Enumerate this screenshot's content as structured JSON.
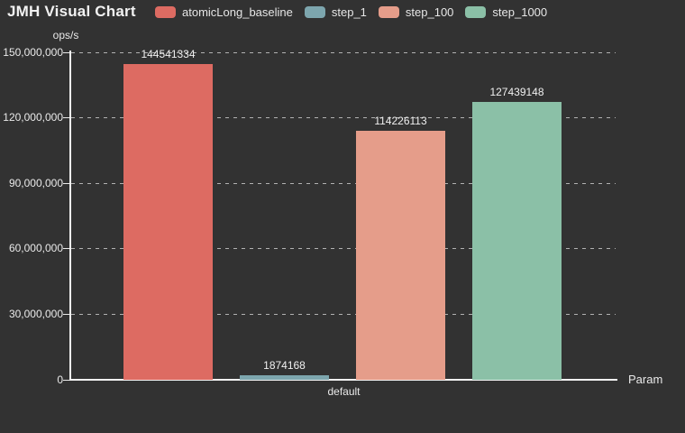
{
  "chart_data": {
    "type": "bar",
    "title": "JMH Visual Chart",
    "categories": [
      "default"
    ],
    "series": [
      {
        "name": "atomicLong_baseline",
        "values": [
          144541334
        ],
        "value_labels": [
          "144541334"
        ],
        "color": "#dd6b62"
      },
      {
        "name": "step_1",
        "values": [
          1874168
        ],
        "value_labels": [
          "1874168"
        ],
        "color": "#7da6ae"
      },
      {
        "name": "step_100",
        "values": [
          114226113
        ],
        "value_labels": [
          "114226113"
        ],
        "color": "#e59d8a"
      },
      {
        "name": "step_1000",
        "values": [
          127439148
        ],
        "value_labels": [
          "127439148"
        ],
        "color": "#8bc0a7"
      }
    ],
    "xlabel": "Param",
    "ylabel": "ops/s",
    "ylim": [
      0,
      150000000
    ],
    "ytick_step": 30000000,
    "ytick_labels": [
      "0",
      "30,000,000",
      "60,000,000",
      "90,000,000",
      "120,000,000",
      "150,000,000"
    ],
    "grid": "horizontal-dashed",
    "legend_position": "top"
  },
  "theme": {
    "background": "#323232",
    "axis_color": "#f2f2f2",
    "grid_color": "#c8c8c8",
    "text_color": "#e9e9e9",
    "title_color": "#f2f2f2"
  }
}
